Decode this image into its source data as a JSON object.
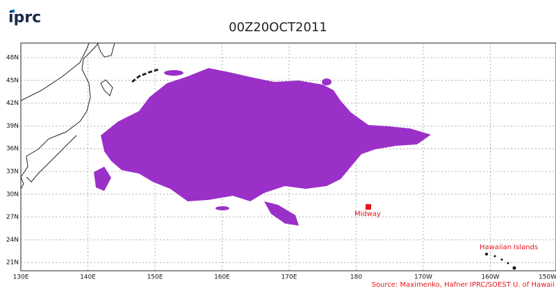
{
  "header": {
    "logo": "iprc",
    "title": "00Z20OCT2011"
  },
  "map": {
    "lat_labels": [
      "48N",
      "45N",
      "42N",
      "39N",
      "36N",
      "33N",
      "30N",
      "27N",
      "24N",
      "21N"
    ],
    "lon_labels": [
      "130E",
      "140E",
      "150E",
      "160E",
      "170E",
      "180",
      "170W",
      "160W",
      "150W"
    ],
    "places": [
      "Midway",
      "Hawaiian Islands"
    ],
    "source": "Source: Maximenko, Hafner IPRC/SOEST U. of Hawaii"
  }
}
